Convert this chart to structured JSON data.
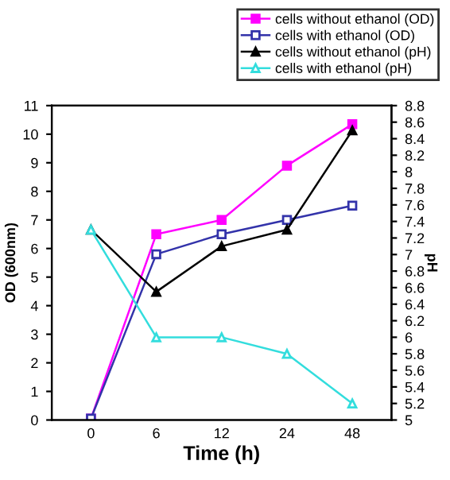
{
  "chart_data": {
    "type": "line",
    "xlabel": "Time (h)",
    "ylabel": "OD (600nm)",
    "y2label": "pH",
    "categories": [
      "0",
      "6",
      "12",
      "24",
      "48"
    ],
    "series": [
      {
        "name": "cells without ethanol (OD)",
        "color": "#ff00ff",
        "marker": "square",
        "values": [
          0.05,
          6.5,
          7.0,
          8.9,
          10.35
        ]
      },
      {
        "name": "cells with ethanol (OD)",
        "color": "#3333aa",
        "marker": "square",
        "values": [
          0.05,
          5.8,
          6.5,
          7.0,
          7.5
        ]
      },
      {
        "name": "cells without ethanol (pH)",
        "color": "#000000",
        "marker": "triangle",
        "axis": "y2",
        "values": [
          7.3,
          6.55,
          7.1,
          7.3,
          8.5
        ]
      },
      {
        "name": "cells with ethanol (pH)",
        "color": "#33dddd",
        "marker": "triangle",
        "axis": "y2",
        "values": [
          7.3,
          6.0,
          6.0,
          5.8,
          5.2
        ]
      }
    ],
    "ylim": [
      0,
      11
    ],
    "yticks": [
      0,
      1,
      2,
      3,
      4,
      5,
      6,
      7,
      8,
      9,
      10,
      11
    ],
    "y2lim": [
      5,
      8.8
    ],
    "y2ticks": [
      5,
      5.2,
      5.4,
      5.6,
      5.8,
      6,
      6.2,
      6.4,
      6.6,
      6.8,
      7,
      7.2,
      7.4,
      7.6,
      7.8,
      8,
      8.2,
      8.4,
      8.6,
      8.8
    ],
    "grid": false,
    "legend": "top right"
  }
}
